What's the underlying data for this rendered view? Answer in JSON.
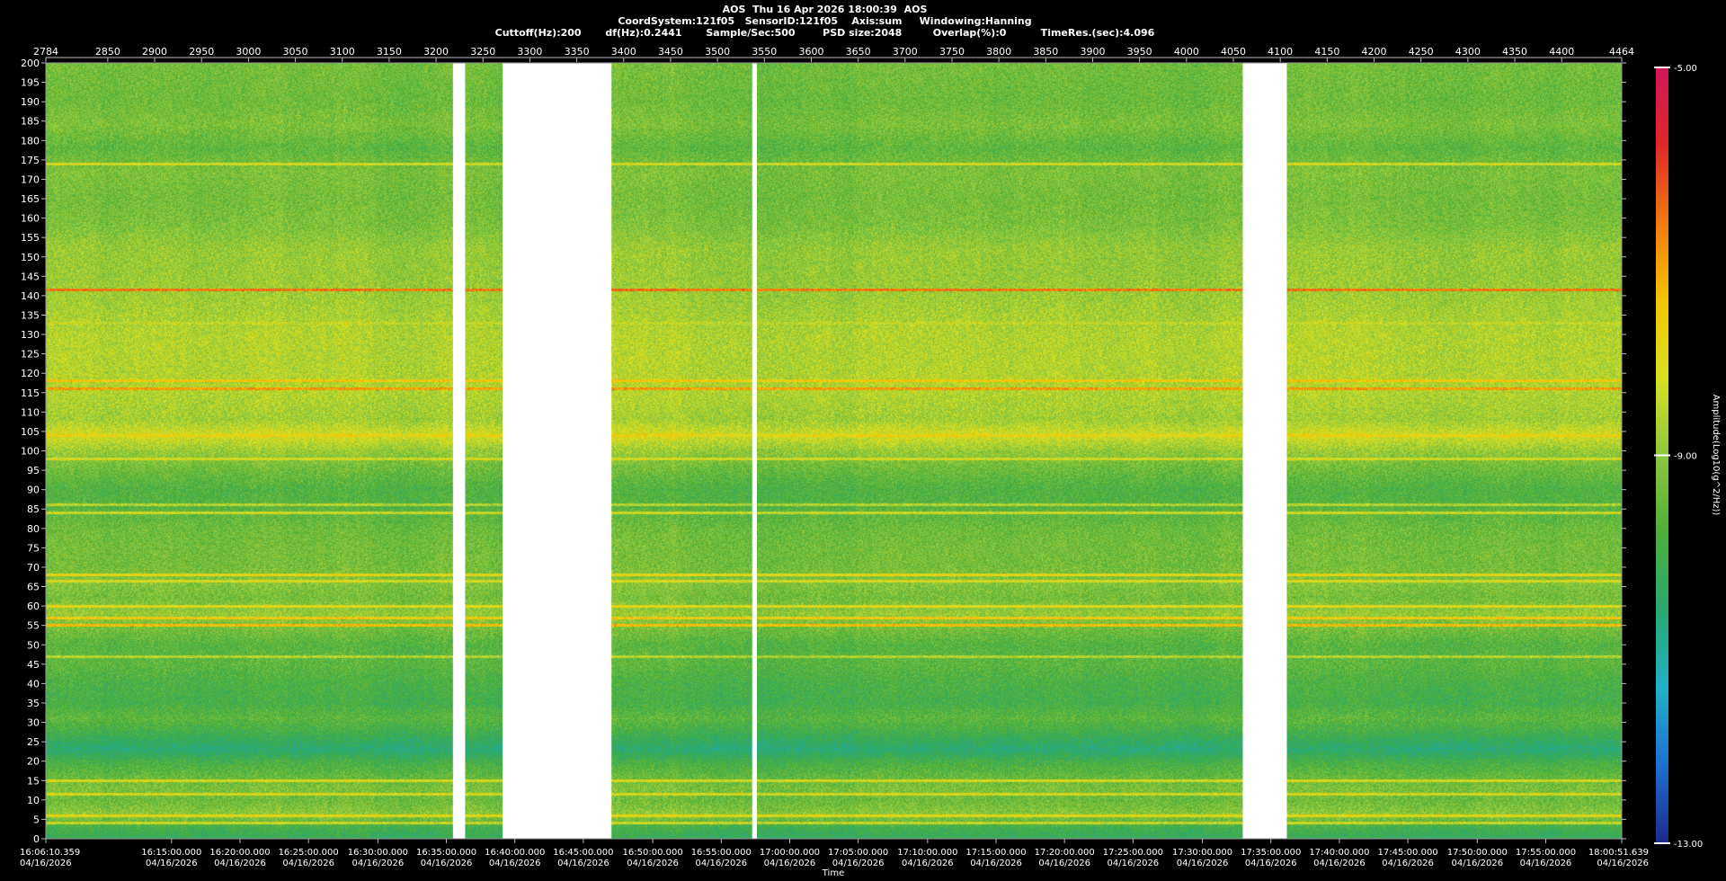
{
  "header": {
    "line1": "AOS  Thu 16 Apr 2026 18:00:39  AOS",
    "line2": "CoordSystem:121f05   SensorID:121f05    Axis:sum     Windowing:Hanning",
    "line3": "Cuttoff(Hz):200       df(Hz):0.2441       Sample/Sec:500        PSD size:2048         Overlap(%):0          TimeRes.(sec):4.096"
  },
  "colors": {
    "background": "#000000",
    "gap": "#ffffff",
    "colormap": [
      "#1a2a8a",
      "#1e6fd0",
      "#1fb0c8",
      "#2aa870",
      "#4caf3a",
      "#8cc63e",
      "#d9e021",
      "#f5c400",
      "#f07a10",
      "#e02828",
      "#d4145a"
    ]
  },
  "chart_data": {
    "type": "heatmap",
    "title": "",
    "xlabel": "Time",
    "ylabel": "",
    "x_top_range": [
      2784,
      4464
    ],
    "x_top_ticks": [
      "2784",
      "2850",
      "2900",
      "2950",
      "3000",
      "3050",
      "3100",
      "3150",
      "3200",
      "3250",
      "3300",
      "3350",
      "3400",
      "3450",
      "3500",
      "3550",
      "3600",
      "3650",
      "3700",
      "3750",
      "3800",
      "3850",
      "3900",
      "3950",
      "4000",
      "4050",
      "4100",
      "4150",
      "4200",
      "4250",
      "4300",
      "4350",
      "4400",
      "4464"
    ],
    "ylim": [
      0,
      200
    ],
    "y_ticks": [
      "200",
      "195",
      "190",
      "185",
      "180",
      "175",
      "170",
      "165",
      "160",
      "155",
      "150",
      "145",
      "140",
      "135",
      "130",
      "125",
      "120",
      "115",
      "110",
      "105",
      "100",
      "95",
      "90",
      "85",
      "80",
      "75",
      "70",
      "65",
      "60",
      "55",
      "50",
      "45",
      "40",
      "35",
      "30",
      "25",
      "20",
      "15",
      "10",
      "5",
      "0"
    ],
    "time_ticks": [
      {
        "x": 2784,
        "time": "16:06:10.359",
        "date": "04/16/2026"
      },
      {
        "x": 2918,
        "time": "16:15:00.000",
        "date": "04/16/2026"
      },
      {
        "x": 2991,
        "time": "16:20:00.000",
        "date": "04/16/2026"
      },
      {
        "x": 3064,
        "time": "16:25:00.000",
        "date": "04/16/2026"
      },
      {
        "x": 3138,
        "time": "16:30:00.000",
        "date": "04/16/2026"
      },
      {
        "x": 3211,
        "time": "16:35:00.000",
        "date": "04/16/2026"
      },
      {
        "x": 3284,
        "time": "16:40:00.000",
        "date": "04/16/2026"
      },
      {
        "x": 3357,
        "time": "16:45:00.000",
        "date": "04/16/2026"
      },
      {
        "x": 3431,
        "time": "16:50:00.000",
        "date": "04/16/2026"
      },
      {
        "x": 3504,
        "time": "16:55:00.000",
        "date": "04/16/2026"
      },
      {
        "x": 3577,
        "time": "17:00:00.000",
        "date": "04/16/2026"
      },
      {
        "x": 3650,
        "time": "17:05:00.000",
        "date": "04/16/2026"
      },
      {
        "x": 3724,
        "time": "17:10:00.000",
        "date": "04/16/2026"
      },
      {
        "x": 3797,
        "time": "17:15:00.000",
        "date": "04/16/2026"
      },
      {
        "x": 3870,
        "time": "17:20:00.000",
        "date": "04/16/2026"
      },
      {
        "x": 3943,
        "time": "17:25:00.000",
        "date": "04/16/2026"
      },
      {
        "x": 4017,
        "time": "17:30:00.000",
        "date": "04/16/2026"
      },
      {
        "x": 4090,
        "time": "17:35:00.000",
        "date": "04/16/2026"
      },
      {
        "x": 4163,
        "time": "17:40:00.000",
        "date": "04/16/2026"
      },
      {
        "x": 4236,
        "time": "17:45:00.000",
        "date": "04/16/2026"
      },
      {
        "x": 4310,
        "time": "17:50:00.000",
        "date": "04/16/2026"
      },
      {
        "x": 4383,
        "time": "17:55:00.000",
        "date": "04/16/2026"
      },
      {
        "x": 4464,
        "time": "18:00:51.639",
        "date": "04/16/2026"
      }
    ],
    "gaps": [
      [
        3218,
        3231
      ],
      [
        3271,
        3387
      ],
      [
        3537,
        3542
      ],
      [
        4060,
        4107
      ]
    ],
    "colorbar": {
      "label": "Amplitude(Log10(g^2/Hz))",
      "min": -13.0,
      "max": -5.0,
      "tick_labels": [
        "-5.00",
        "-9.00",
        "-13.00"
      ],
      "tick_values": [
        -5.0,
        -9.0,
        -13.0
      ]
    },
    "band_profile": [
      {
        "hz": 0,
        "level": -10.3
      },
      {
        "hz": 3,
        "level": -10.0
      },
      {
        "hz": 6,
        "level": -9.0
      },
      {
        "hz": 10,
        "level": -9.4
      },
      {
        "hz": 13,
        "level": -9.2
      },
      {
        "hz": 16,
        "level": -9.5
      },
      {
        "hz": 20,
        "level": -10.0
      },
      {
        "hz": 23,
        "level": -10.6
      },
      {
        "hz": 27,
        "level": -10.1
      },
      {
        "hz": 31,
        "level": -9.6
      },
      {
        "hz": 35,
        "level": -10.0
      },
      {
        "hz": 40,
        "level": -9.9
      },
      {
        "hz": 45,
        "level": -9.6
      },
      {
        "hz": 50,
        "level": -9.7
      },
      {
        "hz": 53,
        "level": -9.4
      },
      {
        "hz": 58,
        "level": -8.9
      },
      {
        "hz": 62,
        "level": -9.3
      },
      {
        "hz": 66,
        "level": -9.1
      },
      {
        "hz": 70,
        "level": -9.3
      },
      {
        "hz": 75,
        "level": -9.3
      },
      {
        "hz": 80,
        "level": -9.4
      },
      {
        "hz": 85,
        "level": -9.7
      },
      {
        "hz": 90,
        "level": -9.8
      },
      {
        "hz": 95,
        "level": -9.4
      },
      {
        "hz": 100,
        "level": -8.9
      },
      {
        "hz": 104,
        "level": -8.2
      },
      {
        "hz": 108,
        "level": -8.8
      },
      {
        "hz": 115,
        "level": -8.6
      },
      {
        "hz": 122,
        "level": -8.6
      },
      {
        "hz": 130,
        "level": -8.6
      },
      {
        "hz": 138,
        "level": -8.8
      },
      {
        "hz": 145,
        "level": -8.9
      },
      {
        "hz": 152,
        "level": -8.9
      },
      {
        "hz": 158,
        "level": -9.2
      },
      {
        "hz": 165,
        "level": -9.3
      },
      {
        "hz": 172,
        "level": -9.2
      },
      {
        "hz": 178,
        "level": -9.6
      },
      {
        "hz": 184,
        "level": -9.2
      },
      {
        "hz": 190,
        "level": -9.4
      },
      {
        "hz": 200,
        "level": -9.3
      }
    ],
    "lines": [
      {
        "hz": 174,
        "level": -8.2
      },
      {
        "hz": 141.5,
        "level": -6.6
      },
      {
        "hz": 133,
        "level": -8.4
      },
      {
        "hz": 118,
        "level": -7.6
      },
      {
        "hz": 116,
        "level": -7.0
      },
      {
        "hz": 104,
        "level": -7.8
      },
      {
        "hz": 98,
        "level": -8.2
      },
      {
        "hz": 86,
        "level": -8.6
      },
      {
        "hz": 84,
        "level": -8.3
      },
      {
        "hz": 68,
        "level": -7.9
      },
      {
        "hz": 66.5,
        "level": -8.2
      },
      {
        "hz": 60,
        "level": -8.0
      },
      {
        "hz": 57,
        "level": -7.6
      },
      {
        "hz": 55,
        "level": -7.4
      },
      {
        "hz": 47,
        "level": -8.6
      },
      {
        "hz": 15,
        "level": -8.2
      },
      {
        "hz": 11.5,
        "level": -8.2
      },
      {
        "hz": 6,
        "level": -8.0
      },
      {
        "hz": 4,
        "level": -8.4
      }
    ]
  }
}
